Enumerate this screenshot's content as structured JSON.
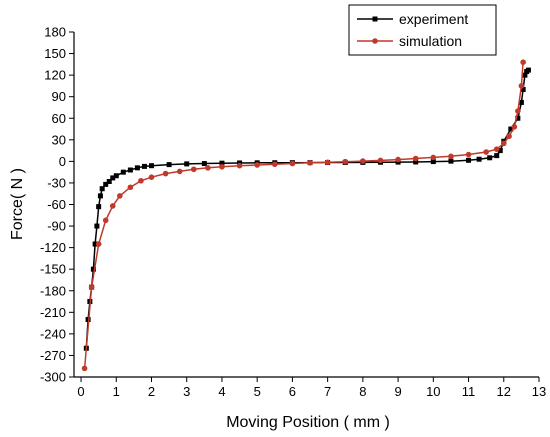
{
  "chart_data": {
    "type": "line",
    "xlabel": "Moving Position ( mm )",
    "ylabel": "Force( N )",
    "xlim": [
      -0.2,
      13.0
    ],
    "ylim": [
      -300,
      180
    ],
    "xticks": [
      0,
      1,
      2,
      3,
      4,
      5,
      6,
      7,
      8,
      9,
      10,
      11,
      12,
      13
    ],
    "yticks": [
      -300,
      -270,
      -240,
      -210,
      -180,
      -150,
      -120,
      -90,
      -60,
      -30,
      0,
      30,
      60,
      90,
      120,
      150,
      180
    ],
    "legend_position": "top-right",
    "grid": false,
    "series": [
      {
        "name": "experiment",
        "color": "#000000",
        "marker": "square",
        "x": [
          0.15,
          0.2,
          0.25,
          0.3,
          0.35,
          0.4,
          0.45,
          0.5,
          0.55,
          0.6,
          0.7,
          0.8,
          0.9,
          1.0,
          1.2,
          1.4,
          1.6,
          1.8,
          2.0,
          2.5,
          3.0,
          3.5,
          4.0,
          4.5,
          5.0,
          5.5,
          6.0,
          6.5,
          7.0,
          7.5,
          8.0,
          8.5,
          9.0,
          9.5,
          10.0,
          10.5,
          11.0,
          11.3,
          11.6,
          11.8,
          11.9,
          12.0,
          12.2,
          12.4,
          12.5,
          12.55,
          12.6,
          12.65,
          12.7
        ],
        "y": [
          -260,
          -220,
          -195,
          -175,
          -150,
          -115,
          -90,
          -63,
          -48,
          -38,
          -32,
          -28,
          -23,
          -20,
          -15,
          -12,
          -9,
          -7,
          -6,
          -4.5,
          -3.5,
          -3,
          -2.5,
          -2.2,
          -2,
          -1.9,
          -1.8,
          -1.7,
          -1.6,
          -1.5,
          -1.4,
          -1.2,
          -1,
          -0.8,
          -0.3,
          0.3,
          1.5,
          3,
          5,
          8,
          15,
          28,
          45,
          60,
          82,
          100,
          120,
          125,
          127
        ]
      },
      {
        "name": "simulation",
        "color": "#c0392b",
        "marker": "circle",
        "x": [
          0.1,
          0.3,
          0.5,
          0.7,
          0.9,
          1.1,
          1.4,
          1.7,
          2.0,
          2.4,
          2.8,
          3.2,
          3.6,
          4.0,
          4.5,
          5.0,
          5.5,
          6.0,
          6.5,
          7.0,
          7.5,
          8.0,
          8.5,
          9.0,
          9.5,
          10.0,
          10.5,
          11.0,
          11.5,
          11.8,
          12.0,
          12.15,
          12.3,
          12.4,
          12.5,
          12.55
        ],
        "y": [
          -288,
          -175,
          -115,
          -82,
          -62,
          -48,
          -36,
          -27,
          -22,
          -17,
          -14,
          -11,
          -9,
          -7.5,
          -6,
          -5,
          -4,
          -3,
          -2,
          -1.2,
          -0.4,
          0.4,
          1.3,
          2.5,
          4,
          5.5,
          7,
          9.5,
          13,
          17,
          25,
          35,
          48,
          70,
          105,
          138
        ]
      }
    ]
  }
}
